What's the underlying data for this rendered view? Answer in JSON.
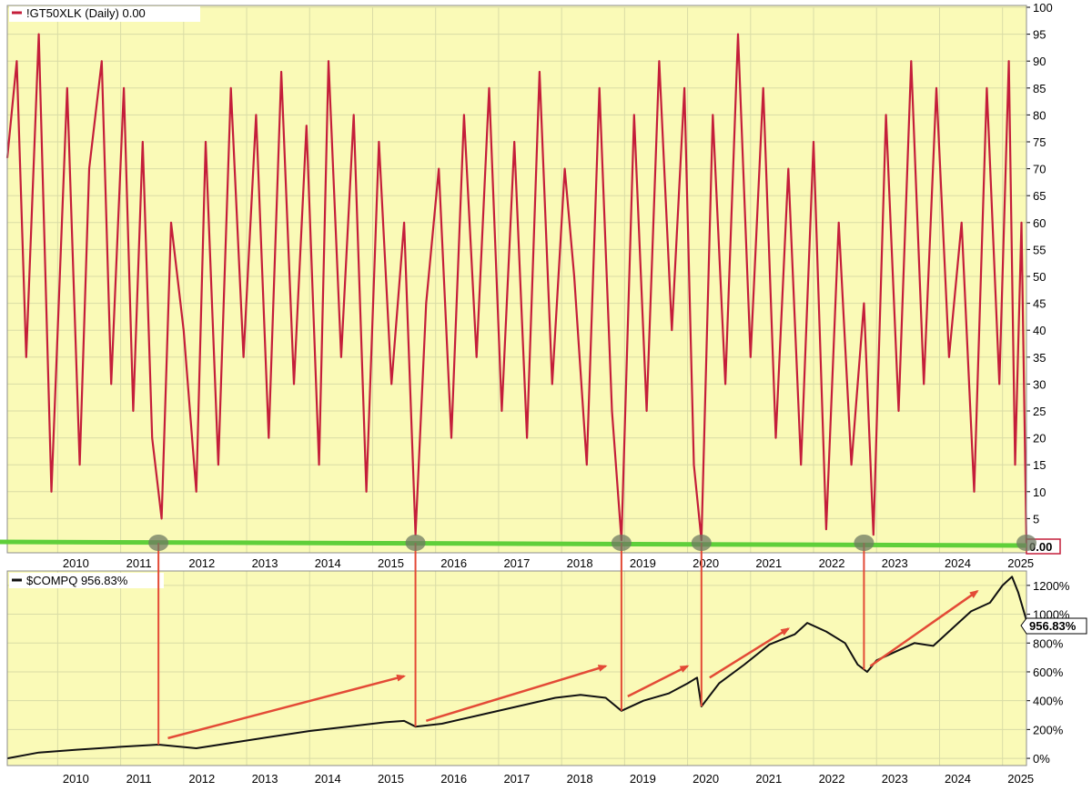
{
  "colors": {
    "panel_bg": "#fafab7",
    "grid": "#d9dca6",
    "border": "#8c8c8c",
    "indicator_line": "#c41e3a",
    "price_line": "#111111",
    "zero_line": "#5fcf3a",
    "marker_circle": "#6e7a62",
    "annotation_red": "#e34a36"
  },
  "chart_data": [
    {
      "type": "line",
      "legend": "!GT50XLK (Daily) 0.00",
      "last_value_label": "0.00",
      "y_ticks": [
        "5",
        "10",
        "15",
        "20",
        "25",
        "30",
        "35",
        "40",
        "45",
        "50",
        "55",
        "60",
        "65",
        "70",
        "75",
        "80",
        "85",
        "90",
        "95",
        "100"
      ],
      "ylim": [
        0,
        100
      ],
      "x_ticks": [
        "2010",
        "2011",
        "2012",
        "2013",
        "2014",
        "2015",
        "2016",
        "2017",
        "2018",
        "2019",
        "2020",
        "2021",
        "2022",
        "2023",
        "2024",
        "2025"
      ],
      "xlim": [
        2009.2,
        2025.38
      ],
      "grid": true,
      "series": [
        {
          "x": [
            2009.2,
            2009.35,
            2009.5,
            2009.7,
            2009.9,
            2010.15,
            2010.35,
            2010.5,
            2010.7,
            2010.85,
            2011.05,
            2011.2,
            2011.35,
            2011.5,
            2011.65,
            2011.8,
            2012.0,
            2012.2,
            2012.35,
            2012.55,
            2012.75,
            2012.95,
            2013.15,
            2013.35,
            2013.55,
            2013.75,
            2013.95,
            2014.15,
            2014.3,
            2014.5,
            2014.7,
            2014.9,
            2015.1,
            2015.3,
            2015.5,
            2015.68,
            2015.85,
            2016.05,
            2016.25,
            2016.45,
            2016.65,
            2016.85,
            2017.05,
            2017.25,
            2017.45,
            2017.65,
            2017.85,
            2018.05,
            2018.2,
            2018.4,
            2018.6,
            2018.8,
            2018.95,
            2019.15,
            2019.35,
            2019.55,
            2019.75,
            2019.95,
            2020.1,
            2020.22,
            2020.4,
            2020.6,
            2020.8,
            2021.0,
            2021.2,
            2021.4,
            2021.6,
            2021.8,
            2022.0,
            2022.2,
            2022.4,
            2022.6,
            2022.8,
            2022.95,
            2023.15,
            2023.35,
            2023.55,
            2023.75,
            2023.95,
            2024.15,
            2024.35,
            2024.55,
            2024.75,
            2024.95,
            2025.1,
            2025.2,
            2025.3,
            2025.38
          ],
          "values": [
            72,
            90,
            35,
            95,
            10,
            85,
            15,
            70,
            90,
            30,
            85,
            25,
            75,
            20,
            5,
            60,
            40,
            10,
            75,
            15,
            85,
            35,
            80,
            20,
            88,
            30,
            78,
            15,
            90,
            35,
            80,
            10,
            75,
            30,
            60,
            2,
            45,
            70,
            20,
            80,
            35,
            85,
            25,
            75,
            20,
            88,
            30,
            70,
            50,
            15,
            85,
            25,
            1,
            80,
            25,
            90,
            40,
            85,
            15,
            1,
            80,
            30,
            95,
            35,
            85,
            20,
            70,
            15,
            75,
            3,
            60,
            15,
            45,
            2,
            80,
            25,
            90,
            30,
            85,
            35,
            60,
            10,
            85,
            30,
            90,
            15,
            60,
            0
          ]
        }
      ]
    },
    {
      "type": "line",
      "legend": "$COMPQ 956.83%",
      "last_value_label": "956.83%",
      "y_ticks": [
        "0%",
        "200%",
        "400%",
        "600%",
        "800%",
        "1000%",
        "1200%"
      ],
      "ylim": [
        -50,
        1300
      ],
      "x_ticks": [
        "2010",
        "2011",
        "2012",
        "2013",
        "2014",
        "2015",
        "2016",
        "2017",
        "2018",
        "2019",
        "2020",
        "2021",
        "2022",
        "2023",
        "2024",
        "2025"
      ],
      "xlim": [
        2009.2,
        2025.38
      ],
      "grid": true,
      "series": [
        {
          "x": [
            2009.2,
            2009.7,
            2010.3,
            2011.0,
            2011.6,
            2012.2,
            2012.8,
            2013.4,
            2014.0,
            2014.6,
            2015.2,
            2015.5,
            2015.68,
            2016.1,
            2016.7,
            2017.3,
            2017.9,
            2018.3,
            2018.7,
            2018.95,
            2019.3,
            2019.7,
            2020.0,
            2020.15,
            2020.22,
            2020.5,
            2020.9,
            2021.3,
            2021.7,
            2021.9,
            2022.2,
            2022.5,
            2022.7,
            2022.85,
            2023.0,
            2023.3,
            2023.6,
            2023.9,
            2024.2,
            2024.5,
            2024.8,
            2025.0,
            2025.15,
            2025.25,
            2025.38
          ],
          "values": [
            0,
            40,
            60,
            80,
            95,
            70,
            110,
            150,
            190,
            220,
            250,
            260,
            220,
            240,
            300,
            360,
            420,
            440,
            420,
            330,
            400,
            450,
            520,
            560,
            360,
            520,
            650,
            790,
            860,
            940,
            880,
            800,
            650,
            600,
            680,
            740,
            800,
            780,
            900,
            1020,
            1080,
            1200,
            1260,
            1150,
            957
          ]
        }
      ]
    }
  ],
  "annotation_dates": [
    2011.6,
    2015.68,
    2018.95,
    2020.22,
    2022.8,
    2025.38
  ]
}
